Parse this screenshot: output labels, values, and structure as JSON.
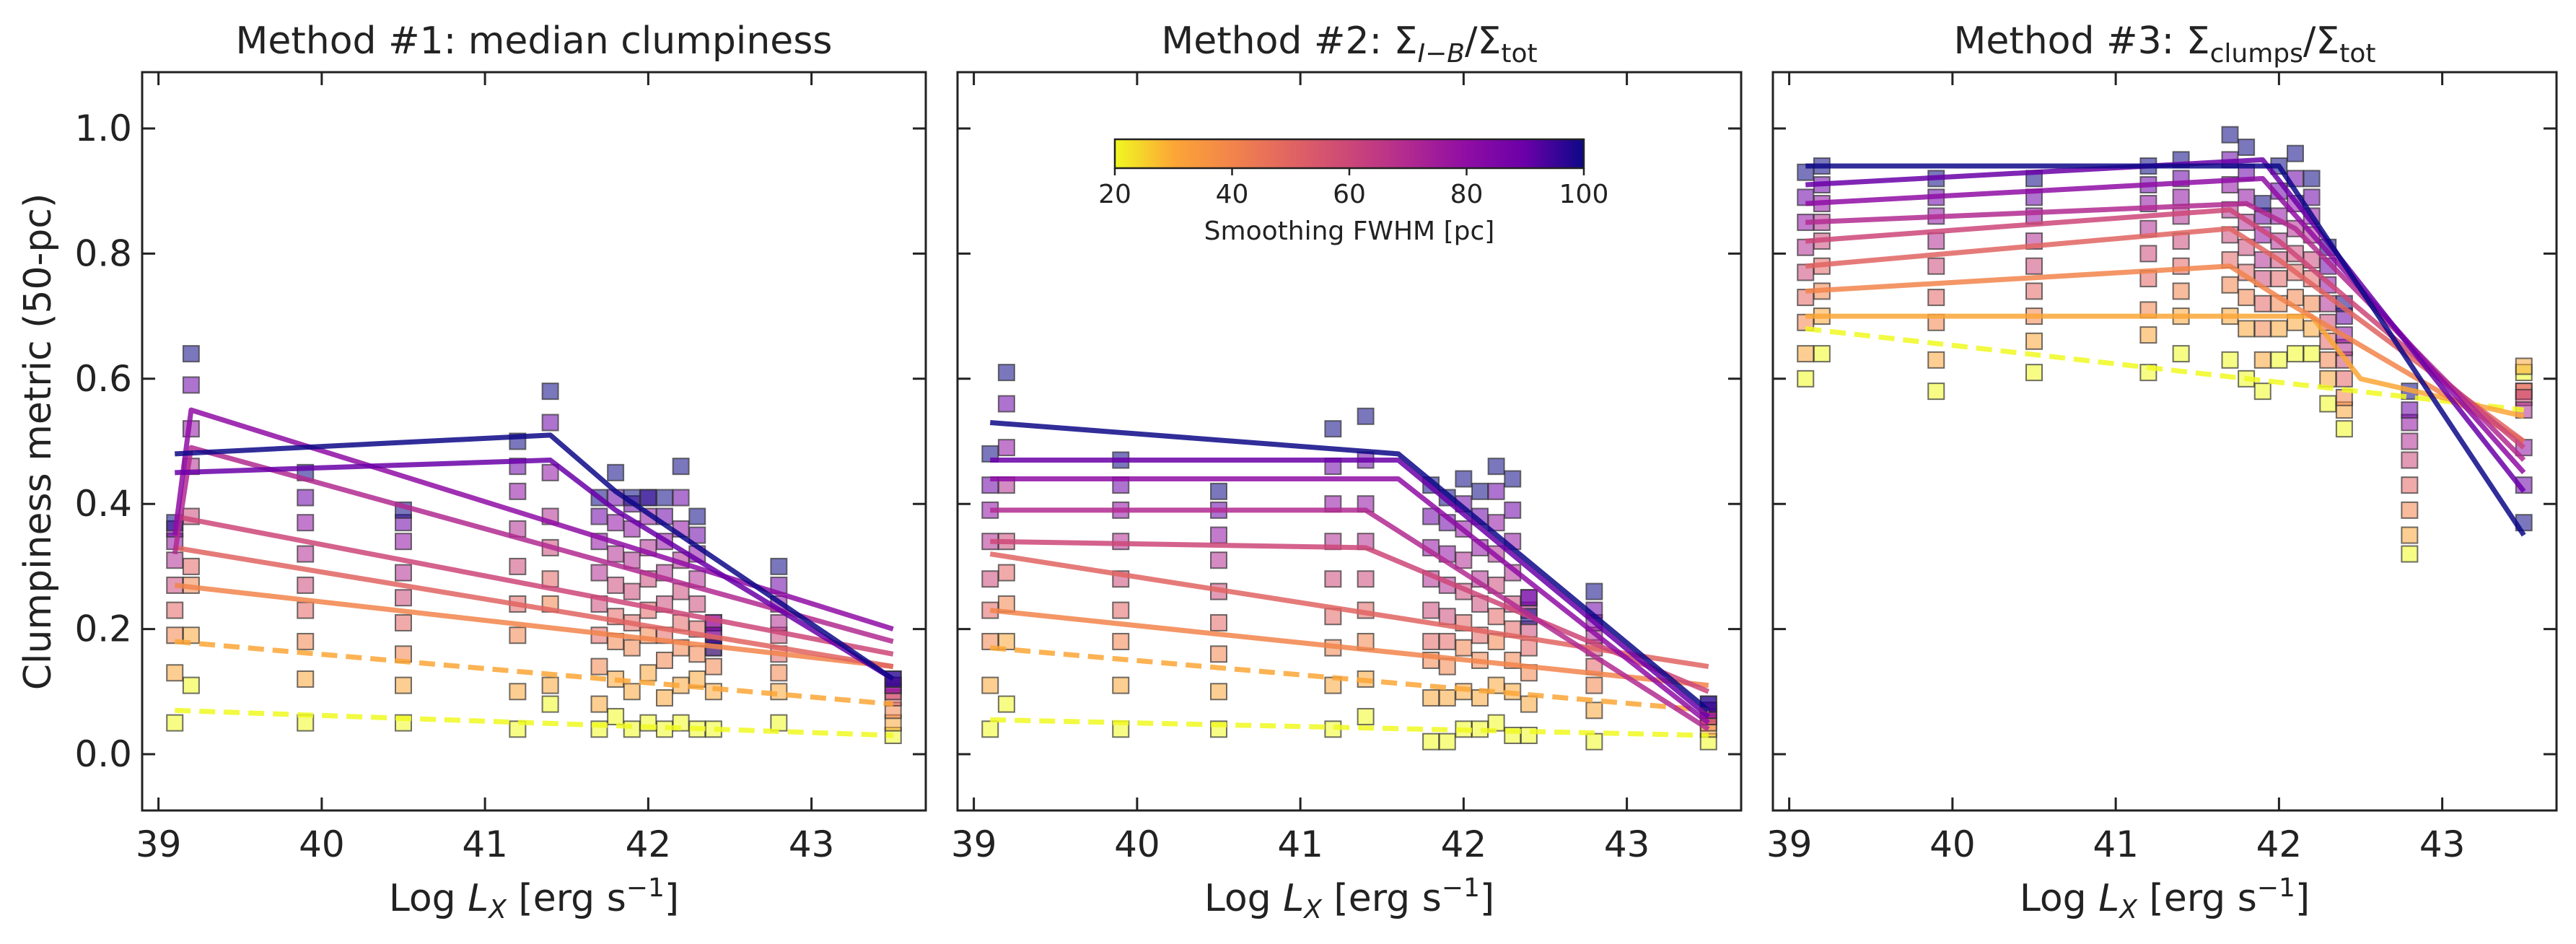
{
  "colors": {
    "c20": "#f0f921",
    "c30": "#fca636",
    "c40": "#f2844b",
    "c50": "#e16462",
    "c60": "#cc4778",
    "c70": "#b12a90",
    "c80": "#8f0da4",
    "c90": "#6a00a8",
    "c100": "#0d0887"
  },
  "chart_data": [
    {
      "type": "scatter",
      "panel": "method-1",
      "title": "Method #1: median clumpiness",
      "ylabel": "Clumpiness metric (50-pc)",
      "xlabel": "Log L_X [erg s^-1]",
      "xlabel_parts": {
        "prefix": "Log ",
        "var": "L",
        "sub": "X",
        "unit": " [erg s",
        "sup": "−1",
        "close": "]"
      },
      "xlim": [
        38.9,
        43.7
      ],
      "ylim": [
        -0.09,
        1.09
      ],
      "xticks": [
        "39",
        "40",
        "41",
        "42",
        "43"
      ],
      "yticks": [
        "0.0",
        "0.2",
        "0.4",
        "0.6",
        "0.8",
        "1.0"
      ],
      "x": [
        39.1,
        39.2,
        39.9,
        40.5,
        41.2,
        41.4,
        41.7,
        41.8,
        41.9,
        42.0,
        42.1,
        42.2,
        42.3,
        42.4,
        42.8,
        43.5
      ],
      "series": [
        {
          "fwhm": 20,
          "values": [
            0.05,
            0.11,
            0.05,
            0.05,
            0.04,
            0.08,
            0.04,
            0.06,
            0.04,
            0.05,
            0.04,
            0.05,
            0.04,
            0.04,
            0.05,
            0.03
          ],
          "fit": {
            "x": [
              39.1,
              43.5
            ],
            "y": [
              0.07,
              0.03
            ],
            "dashed": true
          }
        },
        {
          "fwhm": 30,
          "values": [
            0.13,
            0.19,
            0.12,
            0.11,
            0.1,
            0.11,
            0.08,
            0.12,
            0.1,
            0.13,
            0.09,
            0.11,
            0.12,
            0.1,
            0.1,
            0.05
          ],
          "fit": {
            "x": [
              39.1,
              43.5
            ],
            "y": [
              0.18,
              0.08
            ],
            "dashed": true
          }
        },
        {
          "fwhm": 40,
          "values": [
            0.19,
            0.27,
            0.18,
            0.16,
            0.19,
            0.24,
            0.14,
            0.18,
            0.17,
            0.19,
            0.15,
            0.17,
            0.16,
            0.14,
            0.13,
            0.07
          ],
          "fit": {
            "x": [
              39.1,
              43.5
            ],
            "y": [
              0.27,
              0.14
            ],
            "dashed": false
          }
        },
        {
          "fwhm": 50,
          "values": [
            0.23,
            0.3,
            0.23,
            0.21,
            0.24,
            0.28,
            0.19,
            0.22,
            0.21,
            0.23,
            0.19,
            0.21,
            0.2,
            0.17,
            0.16,
            0.09
          ],
          "fit": {
            "x": [
              39.1,
              43.5
            ],
            "y": [
              0.33,
              0.14
            ],
            "dashed": false
          }
        },
        {
          "fwhm": 60,
          "values": [
            0.27,
            0.38,
            0.27,
            0.25,
            0.3,
            0.33,
            0.24,
            0.27,
            0.26,
            0.28,
            0.24,
            0.26,
            0.24,
            0.19,
            0.19,
            0.1
          ],
          "fit": {
            "x": [
              39.1,
              43.5
            ],
            "y": [
              0.38,
              0.16
            ],
            "dashed": false
          }
        },
        {
          "fwhm": 70,
          "values": [
            0.31,
            0.46,
            0.32,
            0.29,
            0.36,
            0.38,
            0.29,
            0.32,
            0.31,
            0.33,
            0.29,
            0.31,
            0.28,
            0.21,
            0.21,
            0.11
          ],
          "fit": {
            "x": [
              39.1,
              39.2,
              43.5
            ],
            "y": [
              0.32,
              0.49,
              0.18
            ],
            "dashed": false
          }
        },
        {
          "fwhm": 80,
          "values": [
            0.34,
            0.52,
            0.37,
            0.34,
            0.42,
            0.45,
            0.34,
            0.37,
            0.36,
            0.38,
            0.34,
            0.36,
            0.32,
            0.21,
            0.24,
            0.11
          ],
          "fit": {
            "x": [
              39.1,
              39.2,
              43.5
            ],
            "y": [
              0.35,
              0.55,
              0.2
            ],
            "dashed": false
          }
        },
        {
          "fwhm": 90,
          "values": [
            0.36,
            0.59,
            0.41,
            0.37,
            0.46,
            0.53,
            0.38,
            0.41,
            0.4,
            0.41,
            0.38,
            0.41,
            0.35,
            0.19,
            0.27,
            0.12
          ],
          "fit": {
            "x": [
              39.1,
              41.4,
              41.8,
              43.5
            ],
            "y": [
              0.45,
              0.47,
              0.39,
              0.12
            ],
            "dashed": false
          }
        },
        {
          "fwhm": 100,
          "values": [
            0.37,
            0.64,
            0.45,
            0.39,
            0.5,
            0.58,
            0.41,
            0.45,
            0.41,
            0.41,
            0.41,
            0.46,
            0.38,
            0.17,
            0.3,
            0.12
          ],
          "fit": {
            "x": [
              39.1,
              41.4,
              41.8,
              43.5
            ],
            "y": [
              0.48,
              0.51,
              0.42,
              0.12
            ],
            "dashed": false
          }
        }
      ]
    },
    {
      "type": "scatter",
      "panel": "method-2",
      "title": "Method #2: Σ_I−B/Σ_tot",
      "title_parts": {
        "prefix": "Method #2: ",
        "sym": "Σ",
        "sub1": "I−B",
        "mid": "/Σ",
        "sub2": "tot"
      },
      "xlabel": "Log L_X [erg s^-1]",
      "xlim": [
        38.9,
        43.7
      ],
      "ylim": [
        -0.09,
        1.09
      ],
      "xticks": [
        "39",
        "40",
        "41",
        "42",
        "43"
      ],
      "yticks": [],
      "x": [
        39.1,
        39.2,
        39.9,
        40.5,
        41.2,
        41.4,
        41.8,
        41.9,
        42.0,
        42.1,
        42.2,
        42.3,
        42.4,
        42.8,
        43.5
      ],
      "series": [
        {
          "fwhm": 20,
          "values": [
            0.04,
            0.08,
            0.04,
            0.04,
            0.04,
            0.06,
            0.02,
            0.02,
            0.04,
            0.04,
            0.05,
            0.03,
            0.03,
            0.02,
            0.02
          ],
          "fit": {
            "x": [
              39.1,
              43.5
            ],
            "y": [
              0.055,
              0.03
            ],
            "dashed": true
          }
        },
        {
          "fwhm": 30,
          "values": [
            0.11,
            0.18,
            0.11,
            0.1,
            0.11,
            0.12,
            0.09,
            0.09,
            0.1,
            0.09,
            0.11,
            0.1,
            0.08,
            0.07,
            0.04
          ],
          "fit": {
            "x": [
              39.1,
              43.5
            ],
            "y": [
              0.17,
              0.07
            ],
            "dashed": true
          }
        },
        {
          "fwhm": 40,
          "values": [
            0.18,
            0.24,
            0.18,
            0.16,
            0.17,
            0.18,
            0.15,
            0.14,
            0.17,
            0.15,
            0.18,
            0.15,
            0.13,
            0.11,
            0.05
          ],
          "fit": {
            "x": [
              39.1,
              43.5
            ],
            "y": [
              0.23,
              0.11
            ],
            "dashed": false
          }
        },
        {
          "fwhm": 50,
          "values": [
            0.23,
            0.29,
            0.23,
            0.21,
            0.22,
            0.23,
            0.18,
            0.18,
            0.21,
            0.19,
            0.22,
            0.2,
            0.17,
            0.14,
            0.06
          ],
          "fit": {
            "x": [
              39.1,
              43.5
            ],
            "y": [
              0.32,
              0.14
            ],
            "dashed": false
          }
        },
        {
          "fwhm": 60,
          "values": [
            0.28,
            0.34,
            0.28,
            0.26,
            0.28,
            0.28,
            0.23,
            0.22,
            0.26,
            0.24,
            0.27,
            0.24,
            0.2,
            0.17,
            0.06
          ],
          "fit": {
            "x": [
              39.1,
              41.4,
              43.5
            ],
            "y": [
              0.34,
              0.33,
              0.1
            ],
            "dashed": false
          }
        },
        {
          "fwhm": 70,
          "values": [
            0.34,
            0.43,
            0.34,
            0.31,
            0.34,
            0.34,
            0.28,
            0.27,
            0.31,
            0.28,
            0.32,
            0.29,
            0.23,
            0.19,
            0.07
          ],
          "fit": {
            "x": [
              39.1,
              41.4,
              43.5
            ],
            "y": [
              0.39,
              0.39,
              0.04
            ],
            "dashed": false
          }
        },
        {
          "fwhm": 80,
          "values": [
            0.39,
            0.49,
            0.39,
            0.35,
            0.4,
            0.4,
            0.33,
            0.32,
            0.36,
            0.33,
            0.37,
            0.34,
            0.25,
            0.21,
            0.07
          ],
          "fit": {
            "x": [
              39.1,
              41.6,
              43.5
            ],
            "y": [
              0.44,
              0.44,
              0.05
            ],
            "dashed": false
          }
        },
        {
          "fwhm": 90,
          "values": [
            0.43,
            0.56,
            0.43,
            0.39,
            0.46,
            0.47,
            0.38,
            0.37,
            0.4,
            0.38,
            0.42,
            0.39,
            0.25,
            0.23,
            0.08
          ],
          "fit": {
            "x": [
              39.1,
              41.6,
              43.5
            ],
            "y": [
              0.47,
              0.47,
              0.06
            ],
            "dashed": false
          }
        },
        {
          "fwhm": 100,
          "values": [
            0.48,
            0.61,
            0.47,
            0.42,
            0.52,
            0.54,
            0.43,
            0.41,
            0.44,
            0.42,
            0.46,
            0.44,
            0.22,
            0.26,
            0.08
          ],
          "fit": {
            "x": [
              39.1,
              41.6,
              43.5
            ],
            "y": [
              0.53,
              0.48,
              0.07
            ],
            "dashed": false
          }
        }
      ],
      "colorbar": {
        "label": "Smoothing FWHM [pc]",
        "ticks": [
          "20",
          "40",
          "60",
          "80",
          "100"
        ],
        "range": [
          20,
          100
        ],
        "position": "upper-center"
      }
    },
    {
      "type": "scatter",
      "panel": "method-3",
      "title": "Method #3: Σ_clumps/Σ_tot",
      "title_parts": {
        "prefix": "Method #3: ",
        "sym": "Σ",
        "sub1": "clumps",
        "mid": "/Σ",
        "sub2": "tot"
      },
      "xlabel": "Log L_X [erg s^-1]",
      "xlim": [
        38.9,
        43.7
      ],
      "ylim": [
        -0.09,
        1.09
      ],
      "xticks": [
        "39",
        "40",
        "41",
        "42",
        "43"
      ],
      "yticks": [],
      "x": [
        39.1,
        39.2,
        39.9,
        40.5,
        41.2,
        41.4,
        41.7,
        41.8,
        41.9,
        42.0,
        42.1,
        42.2,
        42.3,
        42.4,
        42.8,
        43.5
      ],
      "series": [
        {
          "fwhm": 20,
          "values": [
            0.6,
            0.64,
            0.58,
            0.61,
            0.61,
            0.64,
            0.63,
            0.6,
            0.58,
            0.63,
            0.64,
            0.64,
            0.56,
            0.52,
            0.32,
            0.61
          ],
          "fit": {
            "x": [
              39.1,
              43.5
            ],
            "y": [
              0.68,
              0.55
            ],
            "dashed": true
          }
        },
        {
          "fwhm": 30,
          "values": [
            0.64,
            0.7,
            0.63,
            0.66,
            0.67,
            0.7,
            0.7,
            0.68,
            0.63,
            0.68,
            0.69,
            0.68,
            0.6,
            0.55,
            0.35,
            0.62
          ],
          "fit": {
            "x": [
              39.1,
              42.2,
              42.5,
              43.5
            ],
            "y": [
              0.7,
              0.7,
              0.6,
              0.54
            ],
            "dashed": false
          }
        },
        {
          "fwhm": 40,
          "values": [
            0.69,
            0.74,
            0.69,
            0.7,
            0.71,
            0.74,
            0.75,
            0.73,
            0.68,
            0.72,
            0.73,
            0.72,
            0.63,
            0.57,
            0.39,
            0.58
          ],
          "fit": {
            "x": [
              39.1,
              41.7,
              42.0,
              43.5
            ],
            "y": [
              0.74,
              0.78,
              0.73,
              0.5
            ],
            "dashed": false
          }
        },
        {
          "fwhm": 50,
          "values": [
            0.73,
            0.78,
            0.73,
            0.74,
            0.76,
            0.78,
            0.79,
            0.77,
            0.72,
            0.76,
            0.77,
            0.76,
            0.66,
            0.6,
            0.43,
            0.58
          ],
          "fit": {
            "x": [
              39.1,
              41.7,
              42.0,
              43.5
            ],
            "y": [
              0.78,
              0.84,
              0.79,
              0.5
            ],
            "dashed": false
          }
        },
        {
          "fwhm": 60,
          "values": [
            0.77,
            0.82,
            0.78,
            0.78,
            0.8,
            0.82,
            0.83,
            0.81,
            0.76,
            0.79,
            0.8,
            0.79,
            0.69,
            0.63,
            0.47,
            0.57
          ],
          "fit": {
            "x": [
              39.1,
              41.7,
              42.0,
              43.5
            ],
            "y": [
              0.82,
              0.87,
              0.82,
              0.49
            ],
            "dashed": false
          }
        },
        {
          "fwhm": 70,
          "values": [
            0.81,
            0.85,
            0.82,
            0.82,
            0.84,
            0.86,
            0.87,
            0.85,
            0.79,
            0.82,
            0.84,
            0.83,
            0.72,
            0.65,
            0.5,
            0.55
          ],
          "fit": {
            "x": [
              39.1,
              41.8,
              42.1,
              43.5
            ],
            "y": [
              0.85,
              0.88,
              0.84,
              0.47
            ],
            "dashed": false
          }
        },
        {
          "fwhm": 80,
          "values": [
            0.85,
            0.88,
            0.86,
            0.86,
            0.88,
            0.89,
            0.91,
            0.89,
            0.83,
            0.86,
            0.88,
            0.86,
            0.75,
            0.67,
            0.53,
            0.49
          ],
          "fit": {
            "x": [
              39.1,
              41.9,
              43.5
            ],
            "y": [
              0.88,
              0.92,
              0.45
            ],
            "dashed": false
          }
        },
        {
          "fwhm": 90,
          "values": [
            0.89,
            0.91,
            0.89,
            0.89,
            0.91,
            0.92,
            0.95,
            0.93,
            0.86,
            0.9,
            0.92,
            0.89,
            0.78,
            0.7,
            0.55,
            0.43
          ],
          "fit": {
            "x": [
              39.1,
              41.9,
              43.5
            ],
            "y": [
              0.91,
              0.95,
              0.42
            ],
            "dashed": false
          }
        },
        {
          "fwhm": 100,
          "values": [
            0.93,
            0.94,
            0.92,
            0.92,
            0.94,
            0.95,
            0.99,
            0.97,
            0.88,
            0.94,
            0.96,
            0.92,
            0.81,
            0.72,
            0.58,
            0.37
          ],
          "fit": {
            "x": [
              39.1,
              42.0,
              43.5
            ],
            "y": [
              0.94,
              0.94,
              0.35
            ],
            "dashed": false
          }
        }
      ]
    }
  ]
}
